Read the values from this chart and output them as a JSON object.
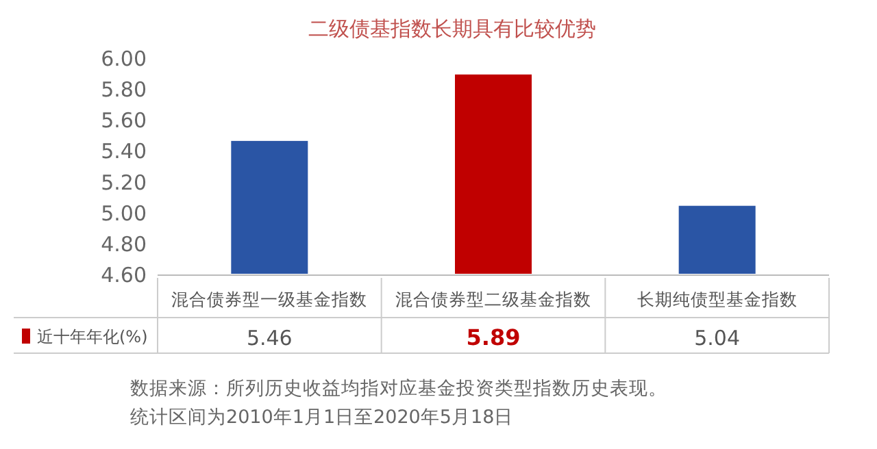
{
  "chart_data": {
    "type": "bar",
    "title": "二级债基指数长期具有比较优势",
    "categories": [
      "混合债券型一级基金指数",
      "混合债券型二级基金指数",
      "长期纯债型基金指数"
    ],
    "series": [
      {
        "name": "近十年年化(%)",
        "color": "#c00000",
        "colors": [
          "#2a55a5",
          "#c00000",
          "#2a55a5"
        ],
        "values": [
          5.46,
          5.89,
          5.04
        ]
      }
    ],
    "ylim": [
      4.6,
      6.0
    ],
    "yticks": [
      {
        "value": 4.6,
        "label": "4.60"
      },
      {
        "value": 4.8,
        "label": "4.80"
      },
      {
        "value": 5.0,
        "label": "5.00"
      },
      {
        "value": 5.2,
        "label": "5.20"
      },
      {
        "value": 5.4,
        "label": "5.40"
      },
      {
        "value": 5.6,
        "label": "5.60"
      },
      {
        "value": 5.8,
        "label": "5.80"
      },
      {
        "value": 6.0,
        "label": "6.00"
      }
    ],
    "data_labels": true,
    "legend": "bottom",
    "grid": false,
    "annotations": [
      "数据来源：所列历史收益均指对应基金投资类型指数历史表现。",
      "统计区间为2010年1月1日至2020年5月18日"
    ]
  }
}
